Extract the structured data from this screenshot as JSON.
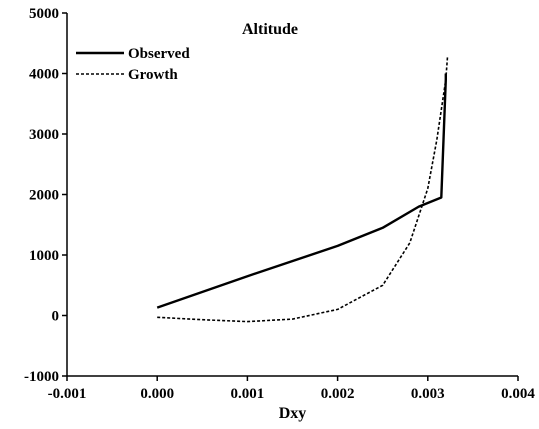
{
  "chart_data": {
    "type": "line",
    "title": "Altitude",
    "xlabel": "Dxy",
    "ylabel": "",
    "xlim": [
      -0.001,
      0.004
    ],
    "ylim": [
      -1000,
      5000
    ],
    "x_ticks": [
      "-0.001",
      "0.000",
      "0.001",
      "0.002",
      "0.003",
      "0.004"
    ],
    "y_ticks": [
      "-1000",
      "0",
      "1000",
      "2000",
      "3000",
      "4000",
      "5000"
    ],
    "grid": false,
    "legend_position": "top-left",
    "series": [
      {
        "name": "Observed",
        "style": "solid",
        "color": "#000000",
        "x": [
          0.0,
          0.001,
          0.002,
          0.0025,
          0.0029,
          0.00315,
          0.0032,
          0.0032
        ],
        "y": [
          130,
          650,
          1150,
          1450,
          1800,
          1950,
          3900,
          4000
        ]
      },
      {
        "name": "Growth",
        "style": "dashed",
        "color": "#000000",
        "x": [
          0.0,
          0.0005,
          0.001,
          0.0015,
          0.002,
          0.0025,
          0.0028,
          0.003,
          0.0031,
          0.0032,
          0.00322
        ],
        "y": [
          -30,
          -70,
          -100,
          -60,
          100,
          500,
          1200,
          2100,
          2900,
          3900,
          4300
        ]
      }
    ]
  }
}
